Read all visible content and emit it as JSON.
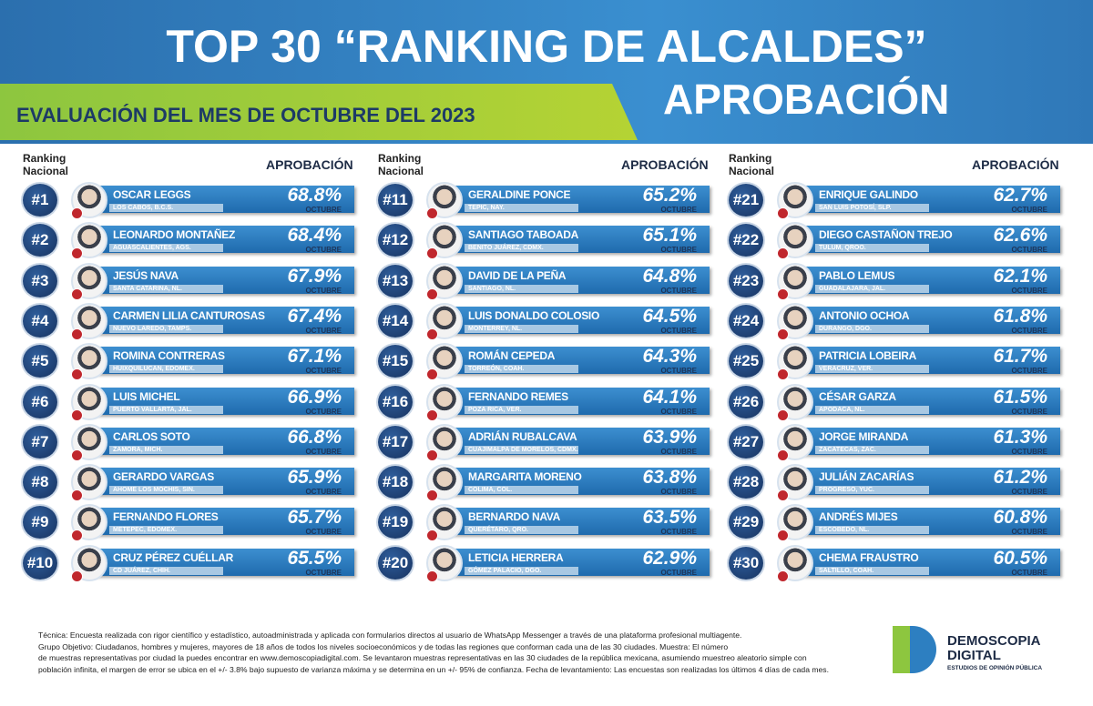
{
  "header": {
    "title": "TOP 30 “RANKING DE ALCALDES”",
    "subtitle": "APROBACIÓN",
    "evaluation": "EVALUACIÓN DEL MES DE OCTUBRE DEL 2023"
  },
  "labels": {
    "ranking": "Ranking Nacional",
    "approval": "APROBACIÓN",
    "month": "OCTUBRE"
  },
  "rows": [
    {
      "rank": "#1",
      "name": "OSCAR LEGGS",
      "city": "LOS CABOS, B.C.S.",
      "approval": "68.8%"
    },
    {
      "rank": "#2",
      "name": "LEONARDO MONTAÑEZ",
      "city": "AGUASCALIENTES, AGS.",
      "approval": "68.4%"
    },
    {
      "rank": "#3",
      "name": "JESÚS NAVA",
      "city": "SANTA CATARINA, NL.",
      "approval": "67.9%"
    },
    {
      "rank": "#4",
      "name": "CARMEN LILIA CANTUROSAS",
      "city": "NUEVO LAREDO, TAMPS.",
      "approval": "67.4%"
    },
    {
      "rank": "#5",
      "name": "ROMINA CONTRERAS",
      "city": "HUIXQUILUCAN, EDOMEX.",
      "approval": "67.1%"
    },
    {
      "rank": "#6",
      "name": "LUIS MICHEL",
      "city": "PUERTO VALLARTA, JAL.",
      "approval": "66.9%"
    },
    {
      "rank": "#7",
      "name": "CARLOS SOTO",
      "city": "ZAMORA, MICH.",
      "approval": "66.8%"
    },
    {
      "rank": "#8",
      "name": "GERARDO VARGAS",
      "city": "AHOME LOS MOCHIS, SIN.",
      "approval": "65.9%"
    },
    {
      "rank": "#9",
      "name": "FERNANDO FLORES",
      "city": "METEPEC, EDOMEX.",
      "approval": "65.7%"
    },
    {
      "rank": "#10",
      "name": "CRUZ PÉREZ CUÉLLAR",
      "city": "CD JUÁREZ, CHIH.",
      "approval": "65.5%"
    },
    {
      "rank": "#11",
      "name": "GERALDINE PONCE",
      "city": "TEPIC, NAY.",
      "approval": "65.2%"
    },
    {
      "rank": "#12",
      "name": "SANTIAGO TABOADA",
      "city": "BENITO JUÁREZ, CDMX.",
      "approval": "65.1%"
    },
    {
      "rank": "#13",
      "name": "DAVID DE LA PEÑA",
      "city": "SANTIAGO, NL.",
      "approval": "64.8%"
    },
    {
      "rank": "#14",
      "name": "LUIS DONALDO COLOSIO",
      "city": "MONTERREY, NL.",
      "approval": "64.5%"
    },
    {
      "rank": "#15",
      "name": "ROMÁN CEPEDA",
      "city": "TORREÓN, COAH.",
      "approval": "64.3%"
    },
    {
      "rank": "#16",
      "name": "FERNANDO REMES",
      "city": "POZA RICA, VER.",
      "approval": "64.1%"
    },
    {
      "rank": "#17",
      "name": "ADRIÁN RUBALCAVA",
      "city": "CUAJIMALPA DE MORELOS, CDMX.",
      "approval": "63.9%"
    },
    {
      "rank": "#18",
      "name": "MARGARITA MORENO",
      "city": "COLIMA, COL.",
      "approval": "63.8%"
    },
    {
      "rank": "#19",
      "name": "BERNARDO NAVA",
      "city": "QUERÉTARO, QRO.",
      "approval": "63.5%"
    },
    {
      "rank": "#20",
      "name": "LETICIA HERRERA",
      "city": "GÓMEZ PALACIO, DGO.",
      "approval": "62.9%"
    },
    {
      "rank": "#21",
      "name": "ENRIQUE GALINDO",
      "city": "SAN LUIS POTOSÍ, SLP.",
      "approval": "62.7%"
    },
    {
      "rank": "#22",
      "name": "DIEGO CASTAÑON TREJO",
      "city": "TULUM, QROO.",
      "approval": "62.6%"
    },
    {
      "rank": "#23",
      "name": "PABLO LEMUS",
      "city": "GUADALAJARA, JAL.",
      "approval": "62.1%"
    },
    {
      "rank": "#24",
      "name": "ANTONIO OCHOA",
      "city": "DURANGO, DGO.",
      "approval": "61.8%"
    },
    {
      "rank": "#25",
      "name": "PATRICIA LOBEIRA",
      "city": "VERACRUZ, VER.",
      "approval": "61.7%"
    },
    {
      "rank": "#26",
      "name": "CÉSAR GARZA",
      "city": "APODACA, NL.",
      "approval": "61.5%"
    },
    {
      "rank": "#27",
      "name": "JORGE MIRANDA",
      "city": "ZACATECAS, ZAC.",
      "approval": "61.3%"
    },
    {
      "rank": "#28",
      "name": "JULIÁN ZACARÍAS",
      "city": "PROGRESO, YUC.",
      "approval": "61.2%"
    },
    {
      "rank": "#29",
      "name": "ANDRÉS MIJES",
      "city": "ESCOBEDO, NL.",
      "approval": "60.8%"
    },
    {
      "rank": "#30",
      "name": "CHEMA FRAUSTRO",
      "city": "SALTILLO, COAH.",
      "approval": "60.5%"
    }
  ],
  "footer": {
    "lines": [
      "Técnica: Encuesta realizada con rigor científico y estadístico, autoadministrada y aplicada con formularios directos al usuario de WhatsApp Messenger a través de una plataforma profesional multiagente.",
      "Grupo Objetivo: Ciudadanos, hombres y mujeres, mayores de 18 años de todos los niveles socioeconómicos y de todas las regiones que conforman cada una de las 30 ciudades. Muestra: El número",
      "de muestras representativas por ciudad la puedes encontrar en www.demoscopiadigital.com. Se levantaron muestras representativas en las 30 ciudades de la república mexicana, asumiendo muestreo aleatorio simple con",
      "población infinita, el margen de error se ubica en el +/- 3.8% bajo supuesto de varianza máxima y se determina en un +/- 95% de confianza. Fecha de levantamiento: Las encuestas son realizadas los últimos 4 días de cada mes."
    ],
    "logo_name": "DEMOSCOPIA DIGITAL",
    "logo_tagline": "ESTUDIOS DE OPINIÓN PÚBLICA"
  }
}
